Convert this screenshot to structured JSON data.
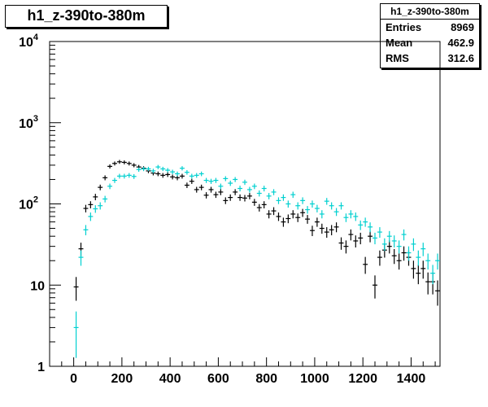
{
  "histogram": {
    "title": "h1_z-390to-380m",
    "stats": {
      "name": "h1_z-390to-380m",
      "rows": [
        {
          "label": "Entries",
          "value": "8969"
        },
        {
          "label": "Mean",
          "value": "462.9"
        },
        {
          "label": "RMS",
          "value": "312.6"
        }
      ]
    }
  },
  "chart_data": {
    "type": "scatter",
    "title": "h1_z-390to-380m",
    "xlabel": "",
    "ylabel": "",
    "xlim": [
      -100,
      1520
    ],
    "ylim": [
      1,
      10000
    ],
    "yscale": "log",
    "grid": false,
    "x_ticks": [
      "0",
      "200",
      "400",
      "600",
      "800",
      "1000",
      "1200",
      "1400"
    ],
    "y_ticks": [
      {
        "base": "1",
        "exp": ""
      },
      {
        "base": "10",
        "exp": ""
      },
      {
        "base": "10",
        "exp": "2"
      },
      {
        "base": "10",
        "exp": "3"
      },
      {
        "base": "10",
        "exp": "4"
      }
    ],
    "series": [
      {
        "color": "#000000",
        "points": [
          [
            10,
            9.5
          ],
          [
            30,
            28
          ],
          [
            50,
            88
          ],
          [
            70,
            98
          ],
          [
            90,
            122
          ],
          [
            110,
            160
          ],
          [
            130,
            210
          ],
          [
            150,
            290
          ],
          [
            170,
            315
          ],
          [
            190,
            330
          ],
          [
            210,
            325
          ],
          [
            230,
            315
          ],
          [
            250,
            300
          ],
          [
            270,
            285
          ],
          [
            290,
            275
          ],
          [
            310,
            255
          ],
          [
            330,
            240
          ],
          [
            350,
            235
          ],
          [
            370,
            225
          ],
          [
            390,
            230
          ],
          [
            410,
            215
          ],
          [
            430,
            210
          ],
          [
            450,
            220
          ],
          [
            470,
            170
          ],
          [
            490,
            190
          ],
          [
            510,
            150
          ],
          [
            530,
            160
          ],
          [
            550,
            128
          ],
          [
            570,
            150
          ],
          [
            590,
            130
          ],
          [
            610,
            140
          ],
          [
            630,
            110
          ],
          [
            650,
            120
          ],
          [
            670,
            140
          ],
          [
            690,
            120
          ],
          [
            710,
            118
          ],
          [
            730,
            125
          ],
          [
            750,
            105
          ],
          [
            770,
            90
          ],
          [
            790,
            98
          ],
          [
            810,
            75
          ],
          [
            830,
            82
          ],
          [
            850,
            70
          ],
          [
            870,
            60
          ],
          [
            890,
            66
          ],
          [
            910,
            75
          ],
          [
            930,
            68
          ],
          [
            950,
            78
          ],
          [
            970,
            65
          ],
          [
            990,
            47
          ],
          [
            1010,
            60
          ],
          [
            1030,
            50
          ],
          [
            1050,
            45
          ],
          [
            1070,
            48
          ],
          [
            1090,
            52
          ],
          [
            1110,
            33
          ],
          [
            1130,
            30
          ],
          [
            1150,
            42
          ],
          [
            1170,
            35
          ],
          [
            1190,
            38
          ],
          [
            1210,
            18
          ],
          [
            1230,
            40
          ],
          [
            1250,
            10
          ],
          [
            1270,
            22
          ],
          [
            1290,
            27
          ],
          [
            1310,
            30
          ],
          [
            1330,
            23
          ],
          [
            1350,
            20
          ],
          [
            1370,
            25
          ],
          [
            1390,
            22
          ],
          [
            1410,
            16
          ],
          [
            1430,
            14
          ],
          [
            1450,
            16
          ],
          [
            1470,
            11
          ],
          [
            1490,
            11
          ],
          [
            1510,
            8.5
          ],
          [
            1530,
            15
          ]
        ]
      },
      {
        "color": "#00d0d0",
        "points": [
          [
            10,
            3
          ],
          [
            30,
            22
          ],
          [
            50,
            48
          ],
          [
            70,
            70
          ],
          [
            90,
            87
          ],
          [
            110,
            95
          ],
          [
            130,
            115
          ],
          [
            150,
            165
          ],
          [
            170,
            195
          ],
          [
            190,
            220
          ],
          [
            210,
            220
          ],
          [
            230,
            225
          ],
          [
            250,
            218
          ],
          [
            270,
            265
          ],
          [
            290,
            270
          ],
          [
            310,
            270
          ],
          [
            330,
            255
          ],
          [
            350,
            285
          ],
          [
            370,
            270
          ],
          [
            390,
            260
          ],
          [
            410,
            248
          ],
          [
            430,
            235
          ],
          [
            450,
            275
          ],
          [
            470,
            245
          ],
          [
            490,
            220
          ],
          [
            510,
            225
          ],
          [
            530,
            235
          ],
          [
            550,
            195
          ],
          [
            570,
            190
          ],
          [
            590,
            195
          ],
          [
            610,
            165
          ],
          [
            630,
            205
          ],
          [
            650,
            180
          ],
          [
            670,
            200
          ],
          [
            690,
            155
          ],
          [
            710,
            185
          ],
          [
            730,
            150
          ],
          [
            750,
            165
          ],
          [
            770,
            135
          ],
          [
            790,
            155
          ],
          [
            810,
            125
          ],
          [
            830,
            140
          ],
          [
            850,
            110
          ],
          [
            870,
            120
          ],
          [
            890,
            100
          ],
          [
            910,
            130
          ],
          [
            930,
            95
          ],
          [
            950,
            110
          ],
          [
            970,
            85
          ],
          [
            990,
            100
          ],
          [
            1010,
            88
          ],
          [
            1030,
            75
          ],
          [
            1050,
            108
          ],
          [
            1070,
            95
          ],
          [
            1090,
            80
          ],
          [
            1110,
            95
          ],
          [
            1130,
            68
          ],
          [
            1150,
            75
          ],
          [
            1170,
            70
          ],
          [
            1190,
            55
          ],
          [
            1210,
            60
          ],
          [
            1230,
            52
          ],
          [
            1250,
            38
          ],
          [
            1270,
            45
          ],
          [
            1290,
            32
          ],
          [
            1310,
            40
          ],
          [
            1330,
            35
          ],
          [
            1350,
            30
          ],
          [
            1370,
            42
          ],
          [
            1390,
            25
          ],
          [
            1410,
            32
          ],
          [
            1430,
            22
          ],
          [
            1450,
            28
          ],
          [
            1470,
            20
          ],
          [
            1490,
            14
          ],
          [
            1510,
            20
          ],
          [
            1530,
            16
          ]
        ]
      }
    ]
  }
}
